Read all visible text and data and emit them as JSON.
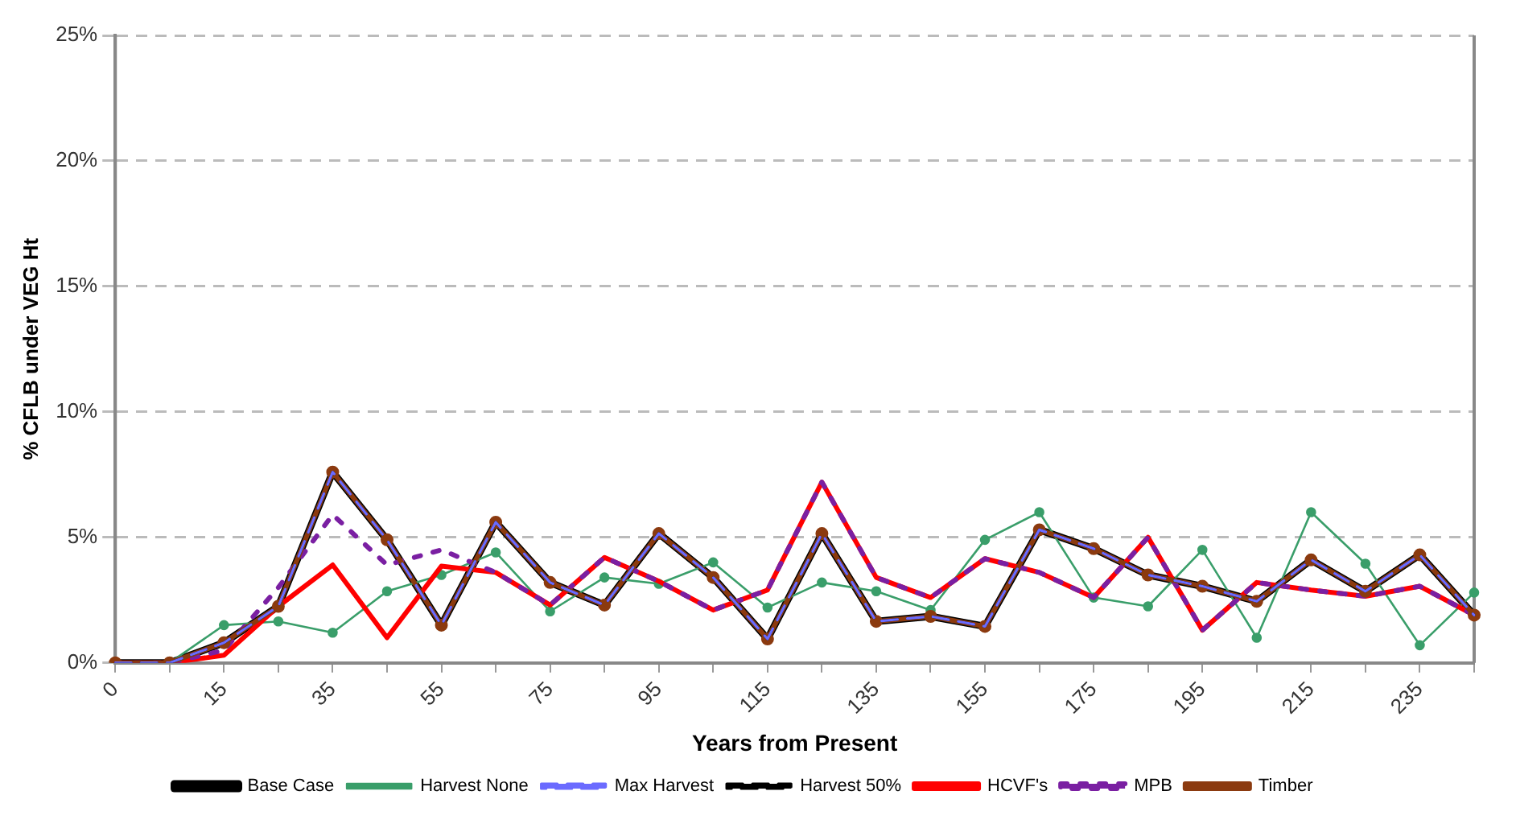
{
  "chart_data": {
    "type": "line",
    "xlabel": "Years from Present",
    "ylabel": "% CFLB under VEG Ht",
    "categories": [
      "0",
      null,
      "15",
      null,
      "35",
      null,
      "55",
      null,
      "75",
      null,
      "95",
      null,
      "115",
      null,
      "135",
      null,
      "155",
      null,
      "175",
      null,
      "195",
      null,
      "215",
      null,
      "235",
      null
    ],
    "ylim": [
      0,
      25
    ],
    "yticks": [
      {
        "value": 0,
        "label": "0%"
      },
      {
        "value": 5,
        "label": "5%"
      },
      {
        "value": 10,
        "label": "10%"
      },
      {
        "value": 15,
        "label": "15%"
      },
      {
        "value": 20,
        "label": "20%"
      },
      {
        "value": 25,
        "label": "25%"
      }
    ],
    "grid": "y",
    "legend": "bottom",
    "marker": "none",
    "series": [
      {
        "name": "Base Case",
        "color": "#000000",
        "line_style": "solid",
        "values": [
          0,
          0,
          0.8,
          2.25,
          7.6,
          4.9,
          1.5,
          5.6,
          3.2,
          2.3,
          5.15,
          3.4,
          0.95,
          5.15,
          1.65,
          1.85,
          1.45,
          5.3,
          4.55,
          3.5,
          3.05,
          2.45,
          4.1,
          2.85,
          4.3,
          1.9
        ]
      },
      {
        "name": "Harvest None",
        "color": "#3a9e6a",
        "line_style": "solid",
        "marker": "circle",
        "values": [
          0,
          0,
          1.5,
          1.65,
          1.2,
          2.85,
          3.5,
          4.4,
          2.05,
          3.4,
          3.15,
          4.0,
          2.2,
          3.2,
          2.85,
          2.1,
          4.9,
          6.0,
          2.6,
          2.25,
          4.5,
          1.0,
          6.0,
          3.95,
          0.7,
          2.8
        ]
      },
      {
        "name": "Max Harvest",
        "color": "#6b6bff",
        "line_style": "dashed",
        "values": [
          0,
          0,
          0.8,
          2.25,
          7.6,
          4.9,
          1.5,
          5.6,
          3.2,
          2.3,
          5.15,
          3.4,
          0.95,
          5.15,
          1.65,
          1.85,
          1.45,
          5.3,
          4.55,
          3.5,
          3.05,
          2.45,
          4.1,
          2.85,
          4.3,
          1.9
        ]
      },
      {
        "name": "Harvest 50%",
        "color": "#000000",
        "line_style": "dashed",
        "values": [
          0,
          0,
          0.8,
          2.25,
          7.6,
          4.9,
          1.5,
          5.6,
          3.2,
          2.3,
          5.15,
          3.4,
          0.95,
          5.15,
          1.65,
          1.85,
          1.45,
          5.3,
          4.55,
          3.5,
          3.05,
          2.45,
          4.1,
          2.85,
          4.3,
          1.9
        ]
      },
      {
        "name": "HCVF's",
        "color": "#ff0000",
        "line_style": "solid",
        "values": [
          0,
          0,
          0.3,
          2.25,
          3.9,
          1.0,
          3.85,
          3.6,
          2.3,
          4.2,
          3.25,
          2.1,
          2.9,
          7.2,
          3.4,
          2.6,
          4.15,
          3.6,
          2.6,
          5.0,
          1.3,
          3.2,
          2.9,
          2.65,
          3.05,
          1.9
        ]
      },
      {
        "name": "MPB",
        "color": "#7a1fa2",
        "line_style": "dotted",
        "values": [
          0,
          0,
          0.5,
          3.0,
          5.9,
          3.9,
          4.5,
          3.6,
          2.3,
          4.2,
          3.25,
          2.1,
          2.9,
          7.2,
          3.4,
          2.6,
          4.15,
          3.6,
          2.6,
          5.0,
          1.3,
          3.2,
          2.9,
          2.65,
          3.05,
          1.9
        ]
      },
      {
        "name": "Timber",
        "color": "#8b3a0f",
        "line_style": "solid",
        "marker": "circle",
        "values": [
          0,
          0,
          0.8,
          2.25,
          7.6,
          4.9,
          1.5,
          5.6,
          3.2,
          2.3,
          5.15,
          3.4,
          0.95,
          5.15,
          1.65,
          1.85,
          1.45,
          5.3,
          4.55,
          3.5,
          3.05,
          2.45,
          4.1,
          2.85,
          4.3,
          1.9
        ]
      }
    ]
  }
}
